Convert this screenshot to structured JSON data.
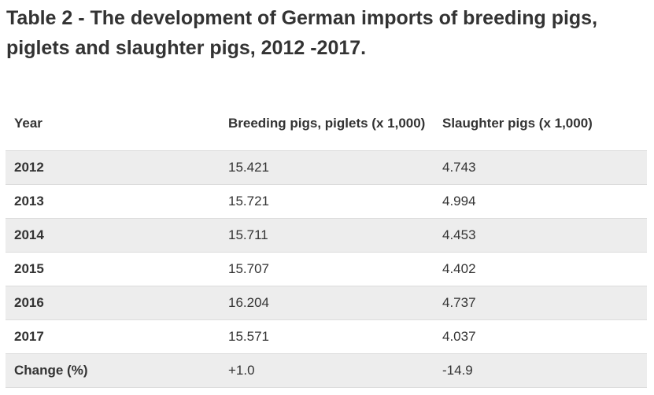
{
  "title": "Table 2 - The development of German imports of breeding pigs, piglets and slaughter pigs, 2012 -2017.",
  "table": {
    "headers": [
      "Year",
      "Breeding pigs, piglets (x 1,000)",
      "Slaughter pigs (x 1,000)"
    ],
    "rows": [
      [
        "2012",
        "15.421",
        "4.743"
      ],
      [
        "2013",
        "15.721",
        "4.994"
      ],
      [
        "2014",
        "15.711",
        "4.453"
      ],
      [
        "2015",
        "15.707",
        "4.402"
      ],
      [
        "2016",
        "16.204",
        "4.737"
      ],
      [
        "2017",
        "15.571",
        "4.037"
      ],
      [
        "Change (%)",
        "+1.0",
        "-14.9"
      ]
    ]
  },
  "colors": {
    "text": "#333333",
    "row_shade": "#ededed",
    "border": "#dcdcdc"
  }
}
